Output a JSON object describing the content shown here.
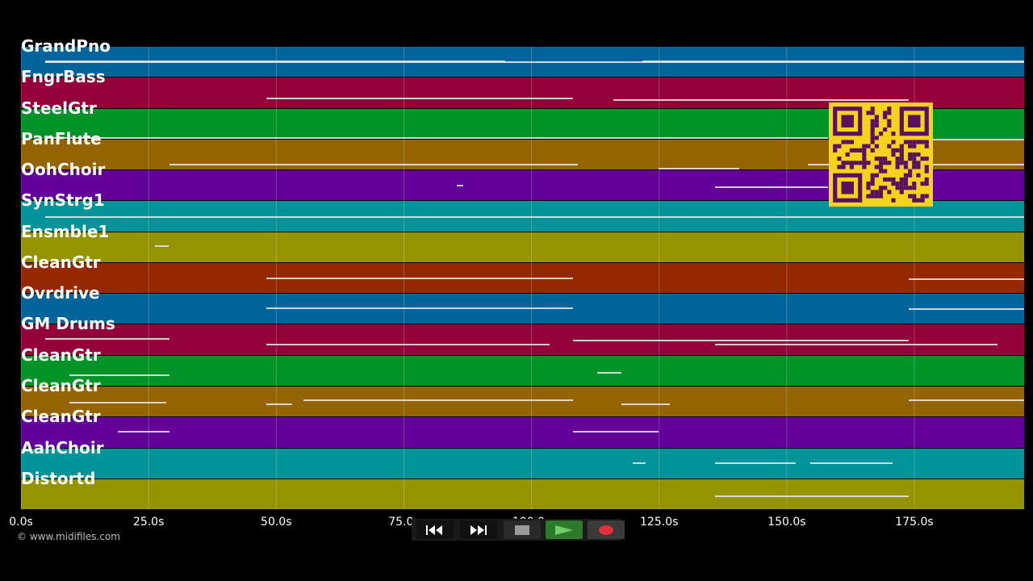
{
  "tracks": [
    {
      "label": "GrandPno",
      "color": "#00649a"
    },
    {
      "label": "FngrBass",
      "color": "#94003a"
    },
    {
      "label": "SteelGtr",
      "color": "#009428"
    },
    {
      "label": "PanFlute",
      "color": "#946400"
    },
    {
      "label": "OohChoir",
      "color": "#64009a"
    },
    {
      "label": "SynStrg1",
      "color": "#00949a"
    },
    {
      "label": "Ensmble1",
      "color": "#949400"
    },
    {
      "label": "CleanGtr",
      "color": "#942800"
    },
    {
      "label": "Ovrdrive",
      "color": "#00649a"
    },
    {
      "label": "GM Drums",
      "color": "#94003a"
    },
    {
      "label": "CleanGtr",
      "color": "#009428"
    },
    {
      "label": "CleanGtr",
      "color": "#946400"
    },
    {
      "label": "CleanGtr",
      "color": "#64009a"
    },
    {
      "label": "AahChoir",
      "color": "#00949a"
    },
    {
      "label": "Distortd",
      "color": "#949400"
    }
  ],
  "timeline": {
    "max_seconds": 196.5,
    "ticks": [
      "0.0s",
      "25.0s",
      "50.0s",
      "75.0s",
      "100.0s",
      "125.0s",
      "150.0s",
      "175.0s"
    ],
    "tick_values": [
      0,
      25,
      50,
      75,
      100,
      125,
      150,
      175
    ]
  },
  "copyright": "© www.midifiles.com",
  "controls": {
    "rewind": "rewind-icon",
    "fast_forward": "fast-forward-icon",
    "stop": "stop-icon",
    "play": "play-icon",
    "record": "record-icon"
  },
  "qr_code": {
    "color": "#f5d31c",
    "ink": "#5a1060"
  }
}
